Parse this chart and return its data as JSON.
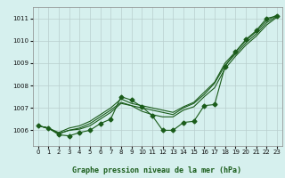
{
  "title": "Graphe pression niveau de la mer (hPa)",
  "bg_color": "#d6f0ee",
  "plot_bg_color": "#d6f0ee",
  "grid_color": "#b8cece",
  "line_color": "#1a5c1a",
  "x_ticks": [
    0,
    1,
    2,
    3,
    4,
    5,
    6,
    7,
    8,
    9,
    10,
    11,
    12,
    13,
    14,
    15,
    16,
    17,
    18,
    19,
    20,
    21,
    22,
    23
  ],
  "ylim": [
    1005.3,
    1011.5
  ],
  "yticks": [
    1006,
    1007,
    1008,
    1009,
    1010,
    1011
  ],
  "series": [
    [
      1006.2,
      1006.1,
      1005.8,
      1005.75,
      1005.9,
      1006.0,
      1006.3,
      1006.5,
      1007.5,
      1007.35,
      1007.05,
      1006.65,
      1006.0,
      1006.0,
      1006.35,
      1006.4,
      1007.1,
      1007.15,
      1008.85,
      1009.5,
      1010.05,
      1010.45,
      1011.0,
      1011.1
    ],
    [
      1006.2,
      1006.1,
      1005.85,
      1006.0,
      1006.05,
      1006.2,
      1006.5,
      1006.8,
      1007.2,
      1007.1,
      1006.85,
      1006.7,
      1006.6,
      1006.6,
      1006.9,
      1007.05,
      1007.5,
      1007.9,
      1008.75,
      1009.3,
      1009.8,
      1010.2,
      1010.7,
      1011.05
    ],
    [
      1006.2,
      1006.1,
      1005.85,
      1006.0,
      1006.1,
      1006.3,
      1006.6,
      1006.9,
      1007.25,
      1007.1,
      1007.0,
      1006.9,
      1006.8,
      1006.7,
      1007.0,
      1007.2,
      1007.6,
      1008.1,
      1008.9,
      1009.4,
      1009.9,
      1010.3,
      1010.8,
      1011.1
    ],
    [
      1006.2,
      1006.1,
      1005.9,
      1006.1,
      1006.2,
      1006.4,
      1006.7,
      1007.0,
      1007.4,
      1007.2,
      1007.1,
      1007.0,
      1006.9,
      1006.8,
      1007.05,
      1007.25,
      1007.7,
      1008.15,
      1009.0,
      1009.5,
      1010.0,
      1010.4,
      1010.9,
      1011.15
    ]
  ],
  "marker_series_idx": 0,
  "marker_style": "D",
  "marker_size": 2.5,
  "label_color": "#1a5c1a",
  "tick_labelsize": 5.5,
  "ylabel_right": false
}
